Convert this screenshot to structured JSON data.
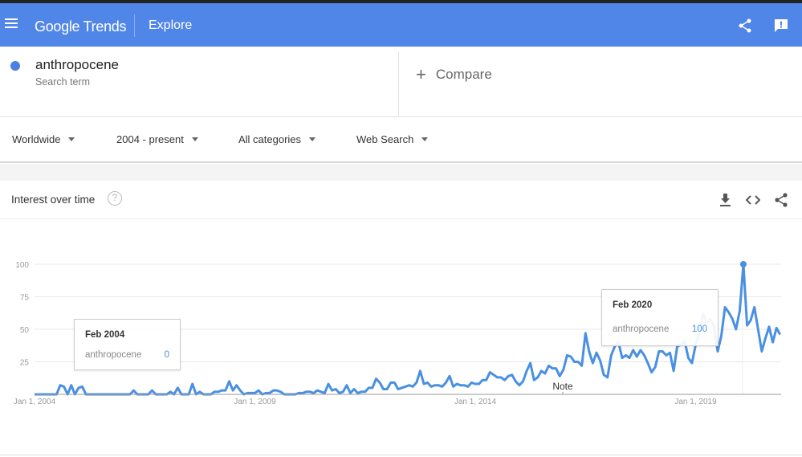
{
  "header": {
    "logo_google": "Google",
    "logo_trends": "Trends",
    "section": "Explore",
    "icons": [
      "menu-icon",
      "share-icon",
      "feedback-icon"
    ]
  },
  "search": {
    "term": "anthropocene",
    "term_type": "Search term",
    "term_color": "#4a7fe6",
    "compare_label": "Compare"
  },
  "filters": [
    {
      "label": "Worldwide"
    },
    {
      "label": "2004 - present"
    },
    {
      "label": "All categories"
    },
    {
      "label": "Web Search"
    }
  ],
  "card": {
    "title": "Interest over time",
    "help": "?",
    "actions": [
      "download-icon",
      "embed-icon",
      "share-icon"
    ]
  },
  "chart_data": {
    "type": "line",
    "title": "",
    "xlabel": "",
    "ylabel": "",
    "ylim": [
      0,
      100
    ],
    "yticks": [
      "25",
      "50",
      "75",
      "100"
    ],
    "xticks": [
      "Jan 1, 2004",
      "Jan 1, 2009",
      "Jan 1, 2014",
      "Jan 1, 2019"
    ],
    "x_start": "Jan 2004",
    "x_end": "Dec 2020",
    "frequency": "monthly",
    "grid": true,
    "series_color": "#4a90e2",
    "annotation": "Note",
    "series": [
      {
        "name": "anthropocene",
        "values": [
          0,
          0,
          0,
          0,
          0,
          0,
          0,
          7,
          6,
          0,
          7,
          0,
          5,
          6,
          0,
          0,
          0,
          0,
          0,
          0,
          0,
          0,
          0,
          0,
          0,
          0,
          0,
          3,
          0,
          0,
          0,
          0,
          3,
          0,
          0,
          0,
          0,
          2,
          0,
          5,
          0,
          0,
          0,
          8,
          0,
          2,
          0,
          0,
          0,
          2,
          2,
          3,
          3,
          10,
          3,
          7,
          3,
          0,
          1,
          1,
          1,
          3,
          0,
          1,
          1,
          3,
          3,
          2,
          0,
          0,
          0,
          0,
          1,
          1,
          2,
          2,
          1,
          3,
          2,
          1,
          8,
          3,
          4,
          1,
          2,
          7,
          1,
          4,
          1,
          2,
          2,
          5,
          5,
          12,
          9,
          4,
          4,
          9,
          9,
          4,
          5,
          6,
          7,
          6,
          9,
          18,
          8,
          9,
          6,
          7,
          7,
          6,
          9,
          14,
          6,
          8,
          7,
          7,
          6,
          9,
          8,
          8,
          11,
          11,
          17,
          15,
          13,
          13,
          11,
          14,
          15,
          10,
          7,
          10,
          18,
          24,
          11,
          13,
          18,
          16,
          22,
          20,
          20,
          14,
          19,
          30,
          29,
          25,
          25,
          22,
          47,
          33,
          24,
          32,
          26,
          15,
          13,
          30,
          37,
          40,
          28,
          30,
          28,
          34,
          29,
          34,
          30,
          24,
          17,
          21,
          33,
          33,
          30,
          32,
          18,
          37,
          38,
          41,
          28,
          24,
          38,
          47,
          62,
          55,
          58,
          52,
          33,
          45,
          67,
          63,
          58,
          50,
          64,
          100,
          53,
          57,
          67,
          50,
          33,
          43,
          52,
          40,
          51,
          46
        ]
      }
    ],
    "tooltips": [
      {
        "date": "Feb 2004",
        "series": "anthropocene",
        "value": "0"
      },
      {
        "date": "Feb 2020",
        "series": "anthropocene",
        "value": "100"
      }
    ]
  }
}
